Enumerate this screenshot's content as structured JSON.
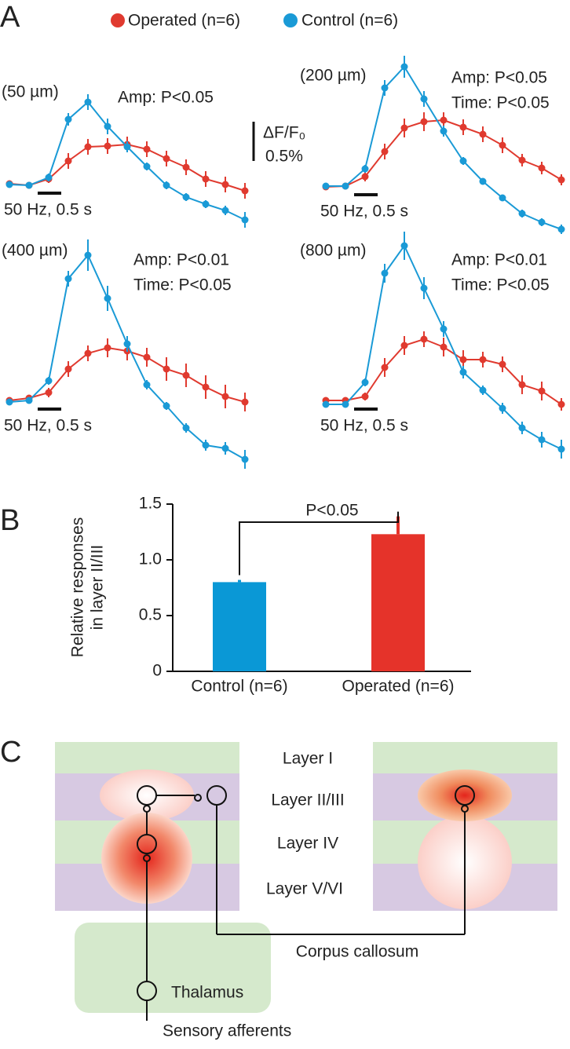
{
  "panel_labels": [
    "A",
    "B",
    "C"
  ],
  "chart_data": [
    {
      "type": "line",
      "subtitle": "(50 µm)",
      "annotations": [
        "Amp: P<0.05"
      ],
      "stimulus": "50 Hz, 0.5 s",
      "scale_bar": {
        "label": "ΔF/F₀",
        "value": 0.5,
        "value_label": "0.5%"
      },
      "series": [
        {
          "name": "Operated (n=6)",
          "color": "#e03a2f",
          "values": [
            0.01,
            -0.01,
            0.07,
            0.3,
            0.48,
            0.49,
            0.51,
            0.45,
            0.33,
            0.22,
            0.07,
            0,
            -0.08
          ],
          "errors": [
            0.03,
            0.03,
            0.05,
            0.1,
            0.1,
            0.1,
            0.1,
            0.1,
            0.1,
            0.1,
            0.1,
            0.1,
            0.1
          ]
        },
        {
          "name": "Control (n=6)",
          "color": "#1a9ad6",
          "values": [
            0,
            -0.01,
            0.09,
            0.83,
            1.05,
            0.74,
            0.48,
            0.23,
            -0.01,
            -0.16,
            -0.25,
            -0.33,
            -0.45
          ],
          "errors": [
            0.03,
            0.03,
            0.05,
            0.08,
            0.1,
            0.1,
            0.07,
            0.05,
            0.05,
            0.05,
            0.05,
            0.06,
            0.1
          ]
        }
      ]
    },
    {
      "type": "line",
      "subtitle": "(200 µm)",
      "annotations": [
        "Amp: P<0.05",
        "Time: P<0.05"
      ],
      "stimulus": "50 Hz, 0.5 s",
      "series": [
        {
          "color": "#e03a2f",
          "values": [
            -0.01,
            0,
            0.12,
            0.44,
            0.74,
            0.82,
            0.84,
            0.75,
            0.66,
            0.52,
            0.33,
            0.23,
            0.08
          ],
          "errors": [
            0.03,
            0.03,
            0.06,
            0.1,
            0.12,
            0.12,
            0.1,
            0.1,
            0.1,
            0.1,
            0.08,
            0.08,
            0.07
          ]
        },
        {
          "color": "#1a9ad6",
          "values": [
            0,
            0,
            0.22,
            1.25,
            1.52,
            1.11,
            0.7,
            0.32,
            0.06,
            -0.15,
            -0.35,
            -0.46,
            -0.55
          ],
          "errors": [
            0.03,
            0.03,
            0.05,
            0.1,
            0.14,
            0.1,
            0.07,
            0.05,
            0.04,
            0.04,
            0.05,
            0.05,
            0.06
          ]
        }
      ]
    },
    {
      "type": "line",
      "subtitle": "(400 µm)",
      "annotations": [
        "Amp: P<0.01",
        "Time: P<0.05"
      ],
      "stimulus": "50 Hz, 0.5 s",
      "series": [
        {
          "color": "#e03a2f",
          "values": [
            0,
            0.03,
            0.1,
            0.4,
            0.6,
            0.67,
            0.63,
            0.55,
            0.4,
            0.32,
            0.17,
            0.05,
            -0.02
          ],
          "errors": [
            0.03,
            0.03,
            0.06,
            0.1,
            0.1,
            0.12,
            0.12,
            0.12,
            0.15,
            0.15,
            0.15,
            0.15,
            0.12
          ]
        },
        {
          "color": "#1a9ad6",
          "values": [
            -0.02,
            0,
            0.25,
            1.55,
            1.85,
            1.3,
            0.72,
            0.2,
            -0.07,
            -0.35,
            -0.57,
            -0.61,
            -0.75
          ],
          "errors": [
            0.03,
            0.03,
            0.05,
            0.1,
            0.2,
            0.16,
            0.1,
            0.06,
            0.05,
            0.06,
            0.07,
            0.08,
            0.12
          ]
        }
      ]
    },
    {
      "type": "line",
      "subtitle": "(800 µm)",
      "annotations": [
        "Amp: P<0.01",
        "Time: P<0.05"
      ],
      "stimulus": "50 Hz, 0.5 s",
      "series": [
        {
          "color": "#e03a2f",
          "values": [
            0,
            0,
            0.05,
            0.42,
            0.7,
            0.78,
            0.68,
            0.52,
            0.52,
            0.46,
            0.2,
            0.12,
            -0.05
          ],
          "errors": [
            0.03,
            0.03,
            0.05,
            0.12,
            0.12,
            0.1,
            0.12,
            0.12,
            0.1,
            0.1,
            0.12,
            0.12,
            0.08
          ]
        },
        {
          "color": "#1a9ad6",
          "values": [
            -0.05,
            -0.05,
            0.23,
            1.62,
            1.97,
            1.43,
            0.91,
            0.36,
            0.13,
            -0.1,
            -0.35,
            -0.5,
            -0.62
          ],
          "errors": [
            0.03,
            0.03,
            0.05,
            0.12,
            0.18,
            0.14,
            0.1,
            0.08,
            0.06,
            0.07,
            0.08,
            0.1,
            0.12
          ]
        }
      ]
    },
    {
      "type": "bar",
      "ylabel": [
        "Relative responses",
        "in layer II/III"
      ],
      "categories": [
        "Control (n=6)",
        "Operated (n=6)"
      ],
      "values": [
        0.8,
        1.23
      ],
      "errors": [
        0.02,
        0.16
      ],
      "colors": [
        "#0a98d6",
        "#e5332a"
      ],
      "ylim": [
        0,
        1.5
      ],
      "yticks": [
        0,
        0.5,
        {
          "value": 1,
          "label": "1.0"
        },
        1.5
      ],
      "annotation": "P<0.05"
    }
  ],
  "diagram": {
    "layers": [
      "Layer I",
      "Layer II/III",
      "Layer IV",
      "Layer V/VI"
    ],
    "connection": "Corpus callosum",
    "thalamus": "Thalamus",
    "input": "Sensory afferents"
  }
}
